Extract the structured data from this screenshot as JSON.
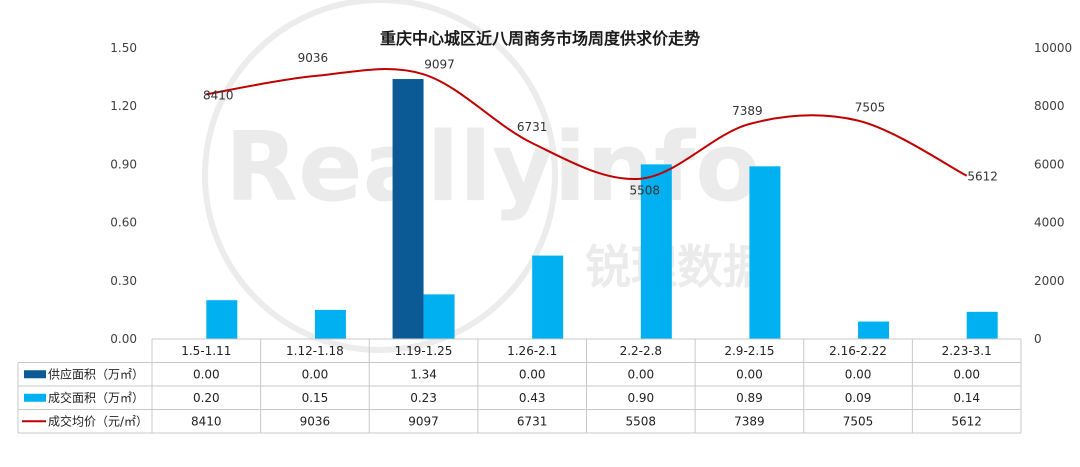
{
  "chart_data": {
    "type": "bar",
    "title": "重庆中心城区近八周商务市场周度供求价走势",
    "categories": [
      "1.5-1.11",
      "1.12-1.18",
      "1.19-1.25",
      "1.26-2.1",
      "2.2-2.8",
      "2.9-2.15",
      "2.16-2.22",
      "2.23-3.1"
    ],
    "left_axis": {
      "min": 0,
      "max": 1.5,
      "ticks": [
        "0.00",
        "0.30",
        "0.60",
        "0.90",
        "1.20",
        "1.50"
      ]
    },
    "right_axis": {
      "min": 0,
      "max": 10000,
      "ticks": [
        "0",
        "2000",
        "4000",
        "6000",
        "8000",
        "10000"
      ]
    },
    "series": [
      {
        "name": "供应面积（万㎡）",
        "kind": "bar",
        "axis": "left",
        "color": "#0b5a96",
        "values": [
          0.0,
          0.0,
          1.34,
          0.0,
          0.0,
          0.0,
          0.0,
          0.0
        ],
        "labels": [
          "0.00",
          "0.00",
          "1.34",
          "0.00",
          "0.00",
          "0.00",
          "0.00",
          "0.00"
        ]
      },
      {
        "name": "成交面积（万㎡）",
        "kind": "bar",
        "axis": "left",
        "color": "#00b0f0",
        "values": [
          0.2,
          0.15,
          0.23,
          0.43,
          0.9,
          0.89,
          0.09,
          0.14
        ],
        "labels": [
          "0.20",
          "0.15",
          "0.23",
          "0.43",
          "0.90",
          "0.89",
          "0.09",
          "0.14"
        ]
      },
      {
        "name": "成交均价（元/㎡）",
        "kind": "line",
        "axis": "right",
        "color": "#c00000",
        "values": [
          8410,
          9036,
          9097,
          6731,
          5508,
          7389,
          7505,
          5612
        ],
        "labels": [
          "8410",
          "9036",
          "9097",
          "6731",
          "5508",
          "7389",
          "7505",
          "5612"
        ]
      }
    ],
    "data_table": true,
    "grid": false
  },
  "watermark": {
    "text": "Reallyinfo",
    "cn": "锐理数据"
  }
}
